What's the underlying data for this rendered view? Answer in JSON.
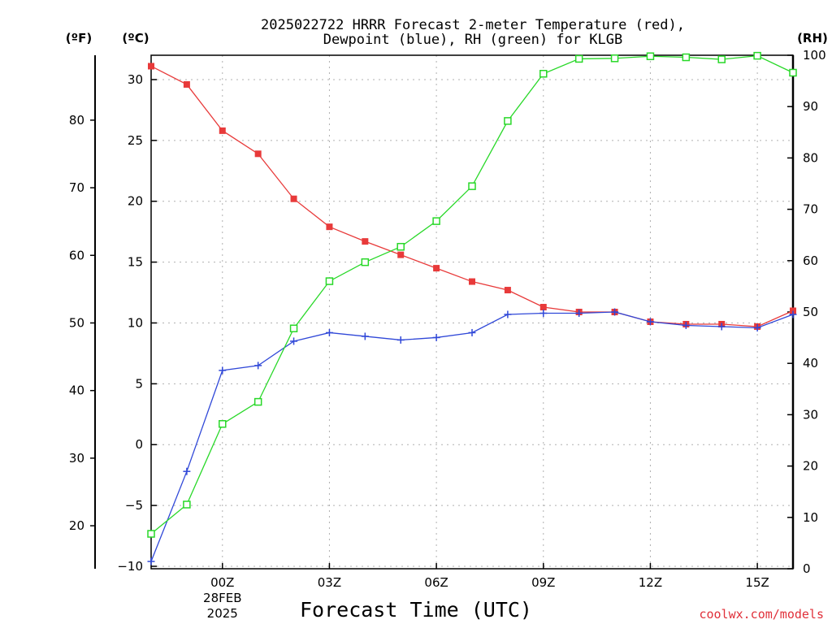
{
  "chart_data": {
    "type": "line",
    "title_lines": [
      "2025022722 HRRR Forecast 2-meter Temperature (red),",
      "Dewpoint (blue), RH (green) for KLGB"
    ],
    "xlabel": "Forecast Time (UTC)",
    "x": [
      -2,
      -1,
      0,
      1,
      2,
      3,
      4,
      5,
      6,
      7,
      8,
      9,
      10,
      11,
      12,
      13,
      14,
      15,
      16
    ],
    "x_range": [
      -2,
      16
    ],
    "x_ticks": [
      {
        "x": 0,
        "label": "00Z",
        "sub": [
          "28FEB",
          "2025"
        ]
      },
      {
        "x": 3,
        "label": "03Z"
      },
      {
        "x": 6,
        "label": "06Z"
      },
      {
        "x": 9,
        "label": "09Z"
      },
      {
        "x": 12,
        "label": "12Z"
      },
      {
        "x": 15,
        "label": "15Z"
      }
    ],
    "y_left_c": {
      "unit_label": "(ºC)",
      "range": [
        -10.2,
        32
      ],
      "ticks": [
        {
          "v": 30,
          "label": "30"
        },
        {
          "v": 25,
          "label": "25"
        },
        {
          "v": 20,
          "label": "20"
        },
        {
          "v": 15,
          "label": "15"
        },
        {
          "v": 10,
          "label": "10"
        },
        {
          "v": 5,
          "label": "5"
        },
        {
          "v": 0,
          "label": "0"
        },
        {
          "v": -5,
          "label": "−5"
        },
        {
          "v": -10,
          "label": "−10"
        }
      ]
    },
    "y_left_f": {
      "unit_label": "(ºF)",
      "ticks": [
        {
          "v": 80,
          "label": "80"
        },
        {
          "v": 70,
          "label": "70"
        },
        {
          "v": 60,
          "label": "60"
        },
        {
          "v": 50,
          "label": "50"
        },
        {
          "v": 40,
          "label": "40"
        },
        {
          "v": 30,
          "label": "30"
        },
        {
          "v": 20,
          "label": "20"
        }
      ]
    },
    "y_right_rh": {
      "unit_label": "(RH)",
      "range": [
        0,
        100
      ],
      "ticks": [
        {
          "v": 100,
          "label": "100"
        },
        {
          "v": 90,
          "label": "90"
        },
        {
          "v": 80,
          "label": "80"
        },
        {
          "v": 70,
          "label": "70"
        },
        {
          "v": 60,
          "label": "60"
        },
        {
          "v": 50,
          "label": "50"
        },
        {
          "v": 40,
          "label": "40"
        },
        {
          "v": 30,
          "label": "30"
        },
        {
          "v": 20,
          "label": "20"
        },
        {
          "v": 10,
          "label": "10"
        },
        {
          "v": 0,
          "label": "0"
        }
      ]
    },
    "grid": true,
    "series": [
      {
        "key": "temperature",
        "axis": "c",
        "color": "#e83a3a",
        "marker": "filled-square",
        "values": [
          31.1,
          29.6,
          25.8,
          23.9,
          20.2,
          17.9,
          16.7,
          15.6,
          14.5,
          13.4,
          12.7,
          11.3,
          10.9,
          10.9,
          10.1,
          9.9,
          9.9,
          9.7,
          11.0
        ]
      },
      {
        "key": "dewpoint",
        "axis": "c",
        "color": "#3048d8",
        "marker": "plus",
        "values": [
          -9.6,
          -2.2,
          6.1,
          6.5,
          8.5,
          9.2,
          8.9,
          8.6,
          8.8,
          9.2,
          10.7,
          10.8,
          10.8,
          10.9,
          10.1,
          9.8,
          9.7,
          9.6,
          10.7
        ]
      },
      {
        "key": "rh",
        "axis": "rh",
        "color": "#28d828",
        "marker": "open-square",
        "values": [
          6.8,
          12.5,
          28.2,
          32.5,
          46.8,
          56.0,
          59.7,
          62.7,
          67.7,
          74.5,
          87.2,
          96.4,
          99.3,
          99.4,
          99.8,
          99.6,
          99.2,
          99.9,
          96.6
        ]
      }
    ],
    "credit": "coolwx.com/models"
  }
}
